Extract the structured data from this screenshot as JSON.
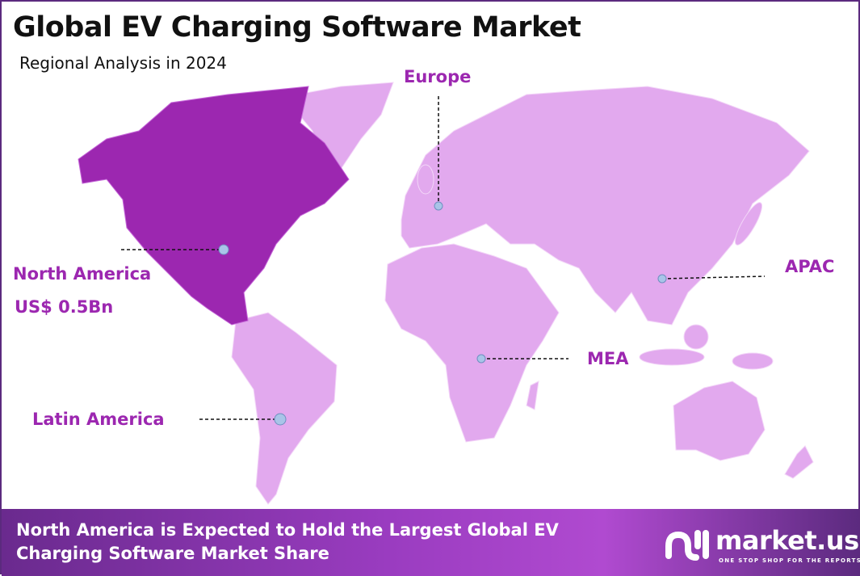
{
  "header": {
    "title": "Global EV Charging Software Market",
    "subtitle": "Regional Analysis in 2024"
  },
  "colors": {
    "highlight_region": "#9c27b0",
    "other_regions": "#e2a9ee",
    "label": "#9c27b0",
    "marker": "#a9c4e8",
    "border": "#5b2a7e"
  },
  "regions": [
    {
      "name": "North America",
      "value": "US$ 0.5Bn",
      "highlighted": true
    },
    {
      "name": "Europe",
      "highlighted": false
    },
    {
      "name": "APAC",
      "highlighted": false
    },
    {
      "name": "MEA",
      "highlighted": false
    },
    {
      "name": "Latin America",
      "highlighted": false
    }
  ],
  "footer": {
    "text": "North America is Expected to Hold the Largest Global EV Charging Software Market Share"
  },
  "logo": {
    "name": "market.us",
    "tagline": "ONE STOP SHOP FOR THE REPORTS"
  }
}
